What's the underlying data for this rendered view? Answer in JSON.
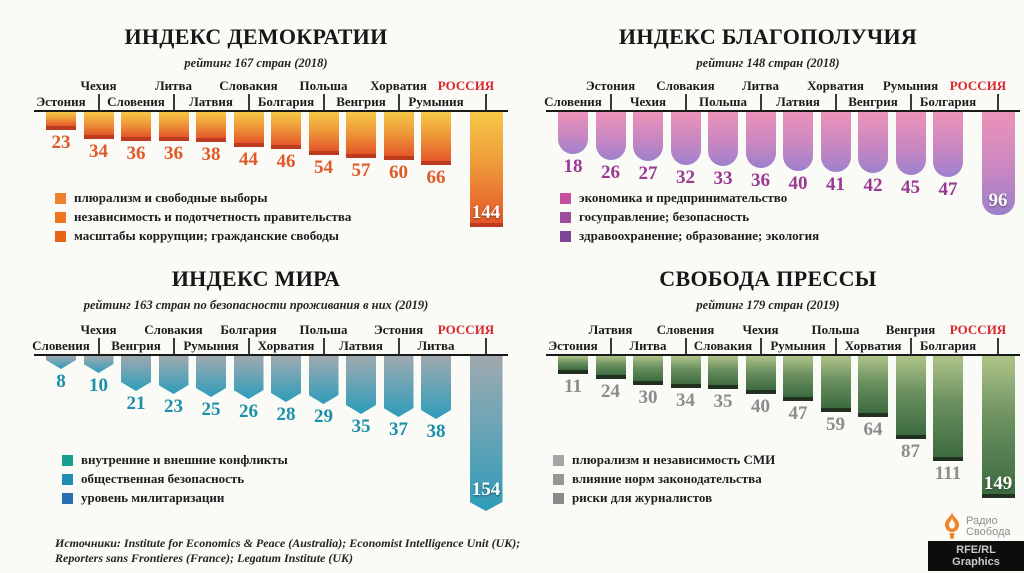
{
  "page": {
    "background": "#FAFAF6",
    "highlight_country_color": "#D8262C"
  },
  "footer": {
    "sources_line1": "Источники: Institute for Economics & Peace (Australia); Economist Intelligence Unit (UK);",
    "sources_line2": "Reporters sans Frontieres (France); Legatum Institute (UK)"
  },
  "logo": {
    "brand_line1": "Радио",
    "brand_line2": "Свобода",
    "credit": "RFE/RL Graphics",
    "flame_color": "#F08428"
  },
  "chart_data": [
    {
      "type": "bar",
      "title": "ИНДЕКС ДЕМОКРАТИИ",
      "subtitle": "рейтинг 167 стран (2018)",
      "categories": [
        "Эстония",
        "Чехия",
        "Словения",
        "Литва",
        "Латвия",
        "Словакия",
        "Болгария",
        "Польша",
        "Венгрия",
        "Хорватия",
        "Румыния",
        "РОССИЯ"
      ],
      "values": [
        23,
        34,
        36,
        36,
        38,
        44,
        46,
        54,
        57,
        60,
        66,
        144
      ],
      "highlight_category": "РОССИЯ",
      "highlight_value": 144,
      "bar_shape": "flat",
      "colors": {
        "bar": [
          "#F5C847",
          "#EE9638",
          "#E4572A"
        ],
        "edge": "#BC3A20",
        "value_text": "#E05A28"
      },
      "legend": [
        {
          "color": "#F0802C",
          "label": "плюрализм и свободные выборы"
        },
        {
          "color": "#EE7522",
          "label": "независимость и подотчетность правительства"
        },
        {
          "color": "#EA6418",
          "label": "масштабы коррупции; гражданские свободы"
        }
      ]
    },
    {
      "type": "bar",
      "title": "ИНДЕКС БЛАГОПОЛУЧИЯ",
      "subtitle": "рейтинг 148 стран (2018)",
      "categories": [
        "Словения",
        "Эстония",
        "Чехия",
        "Словакия",
        "Польша",
        "Литва",
        "Латвия",
        "Хорватия",
        "Венгрия",
        "Румыния",
        "Болгария",
        "РОССИЯ"
      ],
      "values": [
        18,
        26,
        27,
        32,
        33,
        36,
        40,
        41,
        42,
        45,
        47,
        96
      ],
      "highlight_category": "РОССИЯ",
      "highlight_value": 96,
      "bar_shape": "round",
      "colors": {
        "bar": [
          "#EC93B8",
          "#C987C1",
          "#9E80CC"
        ],
        "edge": "#8A6BB8",
        "value_text": "#9A3894"
      },
      "legend": [
        {
          "color": "#C4509E",
          "label": "экономика и предпринимательство"
        },
        {
          "color": "#9B4D9E",
          "label": "госуправление; безопасность"
        },
        {
          "color": "#7E4596",
          "label": "здравоохранение; образование; экология"
        }
      ]
    },
    {
      "type": "bar",
      "title": "ИНДЕКС МИРА",
      "subtitle": "рейтинг 163 стран по безопасности проживания в них (2019)",
      "categories": [
        "Словения",
        "Чехия",
        "Венгрия",
        "Словакия",
        "Румыния",
        "Болгария",
        "Хорватия",
        "Польша",
        "Латвия",
        "Эстония",
        "Литва",
        "РОССИЯ"
      ],
      "values": [
        8,
        10,
        21,
        23,
        25,
        26,
        28,
        29,
        35,
        37,
        38,
        154
      ],
      "highlight_category": "РОССИЯ",
      "highlight_value": 154,
      "bar_shape": "point",
      "colors": {
        "bar": [
          "#9FA9AE",
          "#72A5B5",
          "#2E9CB9"
        ],
        "edge": "#23809A",
        "value_text": "#1C90A8"
      },
      "legend": [
        {
          "color": "#16A08F",
          "label": "внутренние и внешние конфликты"
        },
        {
          "color": "#1E8FB0",
          "label": "общественная безопасность"
        },
        {
          "color": "#2A6FB0",
          "label": "уровень милитаризации"
        }
      ]
    },
    {
      "type": "bar",
      "title": "СВОБОДА ПРЕССЫ",
      "subtitle": "рейтинг 179 стран (2019)",
      "categories": [
        "Эстония",
        "Латвия",
        "Литва",
        "Словения",
        "Словакия",
        "Чехия",
        "Румыния",
        "Польша",
        "Хорватия",
        "Венгрия",
        "Болгария",
        "РОССИЯ"
      ],
      "values": [
        11,
        24,
        30,
        34,
        35,
        40,
        47,
        59,
        64,
        87,
        111,
        149
      ],
      "highlight_category": "РОССИЯ",
      "highlight_value": 149,
      "bar_shape": "edge",
      "colors": {
        "bar": [
          "#AFC489",
          "#6C9160",
          "#3C6B40"
        ],
        "edge": "#22301F",
        "value_text": "#8C8C8C"
      },
      "legend": [
        {
          "color": "#A5A5A5",
          "label": "плюрализм и независимость СМИ"
        },
        {
          "color": "#969696",
          "label": "влияние норм законодательства"
        },
        {
          "color": "#8A8A8A",
          "label": "риски для журналистов"
        }
      ]
    }
  ]
}
